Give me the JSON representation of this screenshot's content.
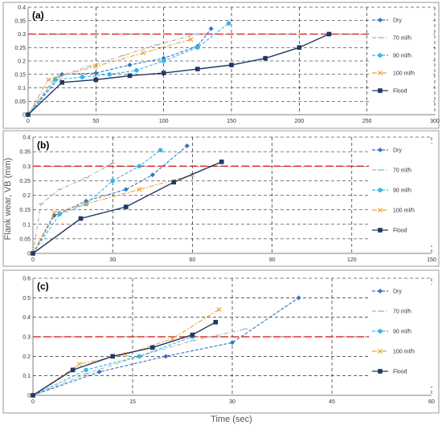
{
  "figure": {
    "ylabel": "Flank wear, VB (mm)",
    "xlabel": "Time (sec)"
  },
  "colors": {
    "dry": "#2e75c8",
    "ml70": "#b0b0b0",
    "ml90": "#33b8ee",
    "ml100": "#f0a030",
    "flood": "#1f3864",
    "threshold": "#e03030"
  },
  "chart_data": [
    {
      "type": "line",
      "panel_label": "(a)",
      "xlim": [
        0,
        300
      ],
      "ylim": [
        0,
        0.4
      ],
      "xticks": [
        0,
        50,
        100,
        150,
        200,
        250,
        300
      ],
      "yticks": [
        0,
        0.05,
        0.1,
        0.15,
        0.2,
        0.25,
        0.3,
        0.35,
        0.4
      ],
      "xticklabels": [
        "0",
        "50",
        "100",
        "150",
        "200",
        "250",
        "300"
      ],
      "yticklabels": [
        "0",
        "0.05",
        "0.1",
        "0.15",
        "0.2",
        "0.25",
        "0.3",
        "0.35",
        "0.4"
      ],
      "threshold": 0.3,
      "legend_position": "right",
      "series": [
        {
          "name": "Dry",
          "marker": "diamond",
          "x": [
            0,
            25,
            50,
            75,
            100,
            125,
            135
          ],
          "y": [
            0,
            0.15,
            0.155,
            0.185,
            0.21,
            0.255,
            0.32
          ]
        },
        {
          "name": "70 ml/h",
          "marker": "dash",
          "x": [
            0,
            20,
            45,
            70,
            95,
            125
          ],
          "y": [
            0,
            0.14,
            0.18,
            0.22,
            0.26,
            0.3
          ]
        },
        {
          "name": "90 ml/h",
          "marker": "circle",
          "x": [
            0,
            20,
            40,
            60,
            80,
            100,
            125,
            148
          ],
          "y": [
            0,
            0.13,
            0.14,
            0.15,
            0.165,
            0.2,
            0.25,
            0.34
          ]
        },
        {
          "name": "100 ml/h",
          "marker": "x",
          "x": [
            0,
            15,
            50,
            85,
            120
          ],
          "y": [
            0,
            0.13,
            0.18,
            0.23,
            0.28
          ]
        },
        {
          "name": "Flood",
          "marker": "square",
          "x": [
            0,
            25,
            50,
            75,
            100,
            125,
            150,
            175,
            200,
            222
          ],
          "y": [
            0,
            0.12,
            0.13,
            0.145,
            0.155,
            0.17,
            0.185,
            0.21,
            0.25,
            0.3
          ]
        }
      ]
    },
    {
      "type": "line",
      "panel_label": "(b)",
      "xlim": [
        0,
        150
      ],
      "ylim": [
        0,
        0.4
      ],
      "xticks": [
        0,
        30,
        60,
        90,
        120,
        150
      ],
      "yticks": [
        0,
        0.05,
        0.1,
        0.15,
        0.2,
        0.25,
        0.3,
        0.35,
        0.4
      ],
      "xticklabels": [
        "0",
        "30",
        "60",
        "90",
        "120",
        "150"
      ],
      "yticklabels": [
        "0",
        "0.05",
        "0.1",
        "0.15",
        "0.2",
        "0.25",
        "0.3",
        "0.35",
        "0.4"
      ],
      "threshold": 0.3,
      "legend_position": "right",
      "series": [
        {
          "name": "Dry",
          "marker": "diamond",
          "x": [
            0,
            8,
            20,
            35,
            45,
            58
          ],
          "y": [
            0,
            0.13,
            0.18,
            0.22,
            0.27,
            0.37
          ]
        },
        {
          "name": "70 ml/h",
          "marker": "dash",
          "x": [
            0,
            3,
            10,
            20,
            30
          ],
          "y": [
            0,
            0.17,
            0.22,
            0.26,
            0.31
          ]
        },
        {
          "name": "90 ml/h",
          "marker": "circle",
          "x": [
            0,
            10,
            20,
            30,
            40,
            48
          ],
          "y": [
            0,
            0.135,
            0.17,
            0.25,
            0.3,
            0.355
          ]
        },
        {
          "name": "100 ml/h",
          "marker": "x",
          "x": [
            0,
            8,
            20,
            40,
            60
          ],
          "y": [
            0,
            0.14,
            0.17,
            0.22,
            0.27
          ]
        },
        {
          "name": "Flood",
          "marker": "square",
          "x": [
            0,
            18,
            35,
            53,
            71
          ],
          "y": [
            0,
            0.12,
            0.16,
            0.245,
            0.315
          ]
        }
      ]
    },
    {
      "type": "line",
      "panel_label": "(c)",
      "xlim": [
        0,
        60
      ],
      "ylim": [
        0,
        0.6
      ],
      "xticks": [
        0,
        15,
        30,
        45,
        60
      ],
      "yticks": [
        0,
        0.1,
        0.2,
        0.3,
        0.4,
        0.5,
        0.6
      ],
      "xticklabels": [
        "0",
        "15",
        "30",
        "45",
        "60"
      ],
      "yticklabels": [
        "0",
        "0.1",
        "0.2",
        "0.3",
        "0.4",
        "0.5",
        "0.6"
      ],
      "threshold": 0.3,
      "legend_position": "right",
      "series": [
        {
          "name": "Dry",
          "marker": "diamond",
          "x": [
            0,
            10,
            20,
            30,
            40
          ],
          "y": [
            0,
            0.12,
            0.2,
            0.27,
            0.5
          ]
        },
        {
          "name": "70 ml/h",
          "marker": "dash",
          "x": [
            0,
            8,
            16,
            24,
            32
          ],
          "y": [
            0,
            0.11,
            0.2,
            0.28,
            0.34
          ]
        },
        {
          "name": "90 ml/h",
          "marker": "circle",
          "x": [
            0,
            8,
            16,
            24
          ],
          "y": [
            0,
            0.13,
            0.2,
            0.3
          ]
        },
        {
          "name": "100 ml/h",
          "marker": "x",
          "x": [
            0,
            7,
            14,
            21,
            28
          ],
          "y": [
            0,
            0.16,
            0.21,
            0.29,
            0.44
          ]
        },
        {
          "name": "Flood",
          "marker": "square",
          "x": [
            0,
            6,
            12,
            18,
            24,
            27.5
          ],
          "y": [
            0,
            0.13,
            0.2,
            0.245,
            0.31,
            0.375
          ]
        }
      ]
    }
  ]
}
